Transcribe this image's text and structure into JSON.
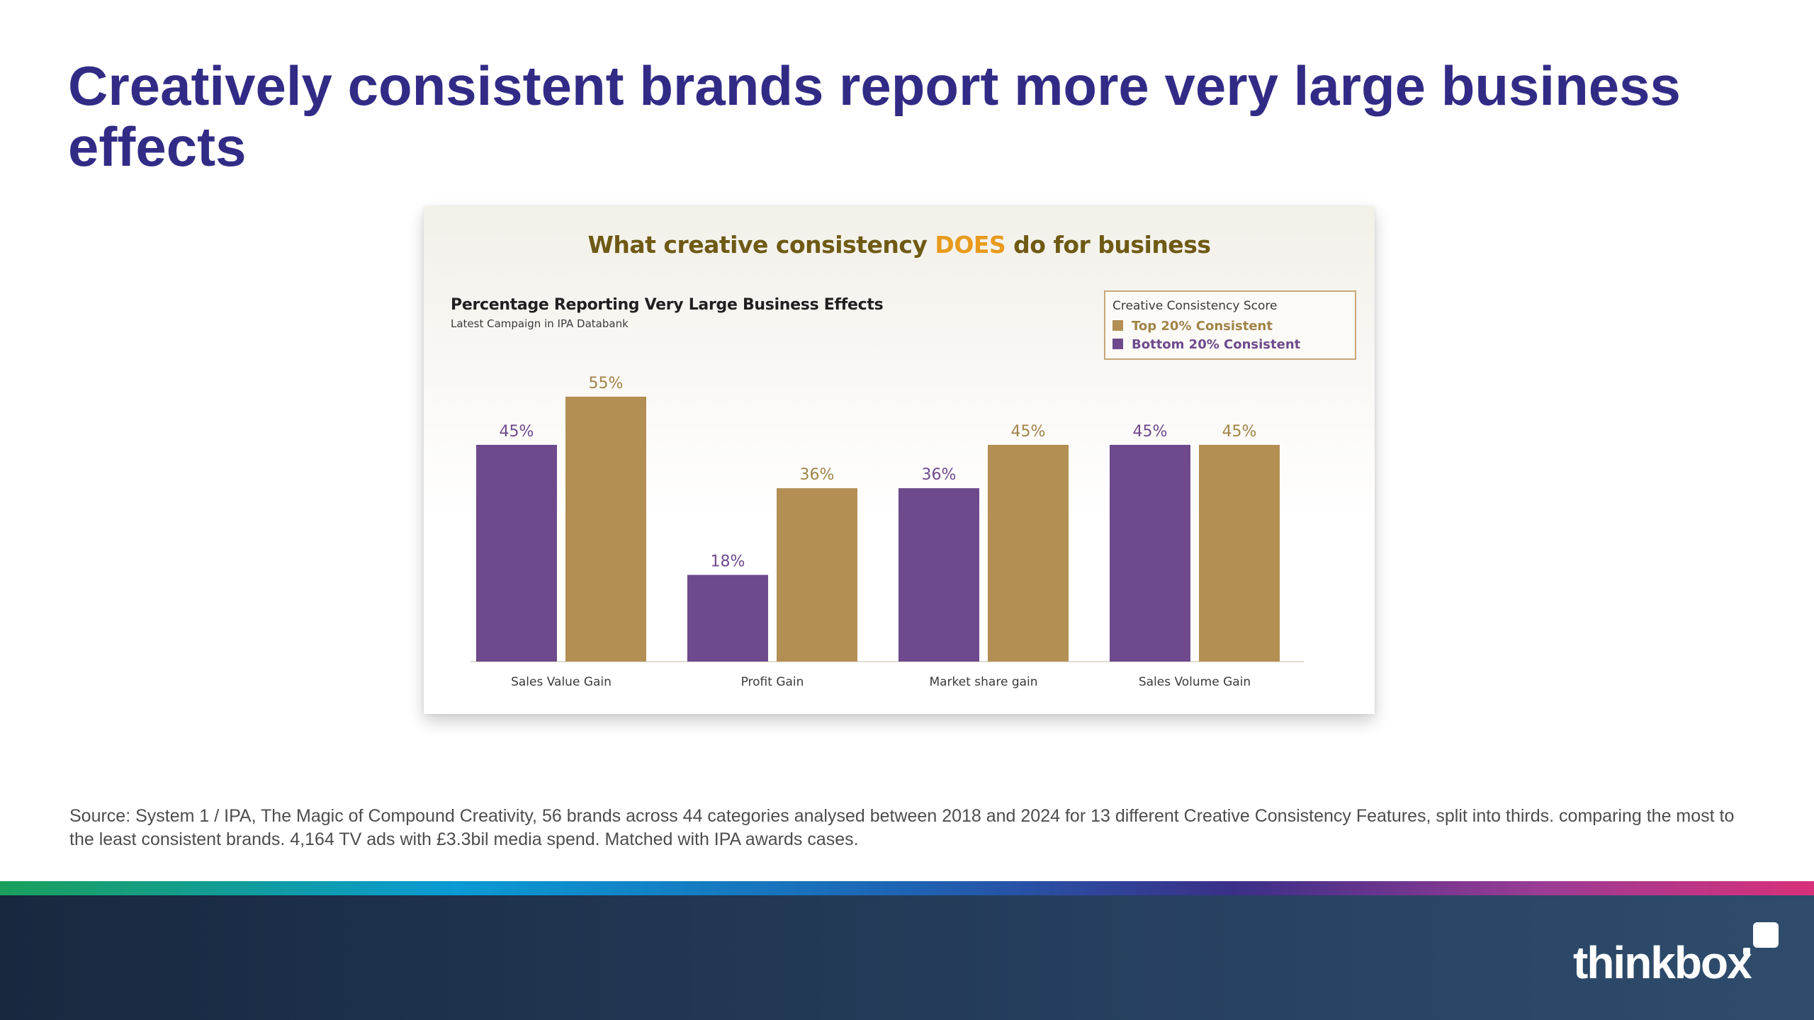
{
  "page": {
    "title": "Creatively consistent brands report more very large business effects",
    "source": "Source: System 1 / IPA, The Magic of Compound Creativity, 56 brands across 44 categories analysed between 2018 and 2024 for 13 different Creative Consistency Features, split into thirds. comparing the most to the least consistent brands. 4,164 TV ads with £3.3bil media spend. Matched with IPA awards cases.",
    "brand": "thinkbox"
  },
  "card": {
    "headline_before": "What creative consistency ",
    "headline_highlight": "DOES",
    "headline_after": " do for business"
  },
  "colors": {
    "title": "#322b86",
    "bottom_series": "#6e4a8d",
    "top_series": "#b38f54",
    "headline_highlight": "#e89a1c"
  },
  "chart_data": {
    "type": "bar",
    "title": "Percentage Reporting Very Large Business Effects",
    "subtitle": "Latest Campaign in IPA Databank",
    "legend_title": "Creative Consistency Score",
    "legend_position": "top-right",
    "categories": [
      "Sales Value Gain",
      "Profit Gain",
      "Market share gain",
      "Sales Volume Gain"
    ],
    "series": [
      {
        "name": "Bottom 20% Consistent",
        "values": [
          45,
          18,
          36,
          45
        ],
        "labels": [
          "45%",
          "18%",
          "36%",
          "45%"
        ]
      },
      {
        "name": "Top 20% Consistent",
        "values": [
          55,
          36,
          45,
          45
        ],
        "labels": [
          "55%",
          "36%",
          "45%",
          "45%"
        ]
      }
    ],
    "legend_items": [
      "Top 20% Consistent",
      "Bottom 20% Consistent"
    ],
    "ylim": [
      0,
      60
    ],
    "grid": false
  }
}
